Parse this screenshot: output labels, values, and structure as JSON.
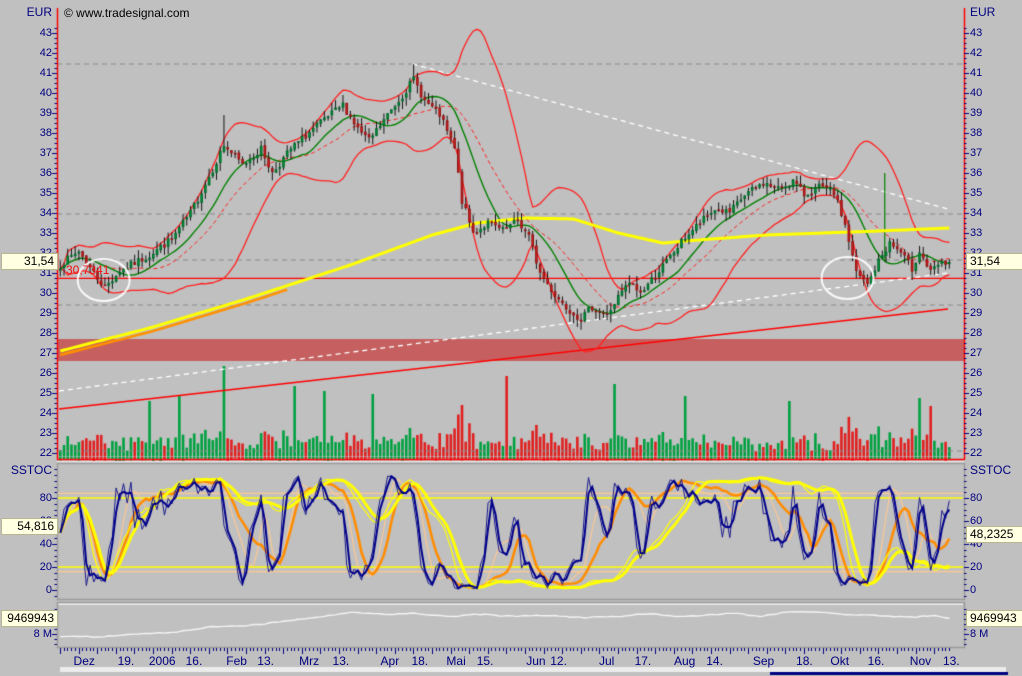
{
  "meta": {
    "copyright": "© www.tradesignal.com"
  },
  "seed": 7,
  "colors": {
    "background": "#c0c0c0",
    "axis_text": "#000080",
    "axis_spine": "#ff0000",
    "up_candle": "#00a040",
    "down_candle": "#e02020",
    "candle_wick": "#151515",
    "bollinger": "#ff2020",
    "ma_green": "#008000",
    "ma_yellow": "#ffff00",
    "ma_orange_under": "#ff9000",
    "trendline_white": "#ffffff",
    "support_red": "#ff0000",
    "band_red": "#c66060",
    "grid_dashed": "#8a8a8a",
    "highlight_bg": "#ffffe1",
    "sstoc_fast_navy": "#00008b",
    "sstoc_signal_orange": "#ff8c00",
    "sstoc_peach": "#ffc890",
    "sstoc_trend_yellow": "#ffff00",
    "volume_line_white": "#f4f4f4",
    "scroll_indicator_navy": "#000080",
    "tick_navy": "#000080"
  },
  "chart_data": [
    {
      "panel": "price",
      "type": "candlestick",
      "currency": "EUR",
      "ylim": [
        22,
        43.5
      ],
      "yticks": [
        22,
        23,
        24,
        25,
        26,
        27,
        28,
        29,
        30,
        31,
        32,
        33,
        34,
        35,
        36,
        37,
        38,
        39,
        40,
        41,
        42,
        43
      ],
      "grid": "dashed-levels",
      "legend_position": "none",
      "candles_count": 240,
      "last_price": 31.54,
      "last_price_label": "31,54",
      "close_anchors": [
        [
          0,
          31.4
        ],
        [
          5,
          32.1
        ],
        [
          9,
          31.0
        ],
        [
          12,
          30.3
        ],
        [
          16,
          31.1
        ],
        [
          24,
          31.9
        ],
        [
          30,
          32.7
        ],
        [
          35,
          34.0
        ],
        [
          41,
          36.2
        ],
        [
          44,
          37.4
        ],
        [
          49,
          36.4
        ],
        [
          54,
          37.2
        ],
        [
          57,
          36.0
        ],
        [
          62,
          37.2
        ],
        [
          68,
          38.2
        ],
        [
          72,
          38.8
        ],
        [
          76,
          39.4
        ],
        [
          80,
          38.2
        ],
        [
          83,
          37.6
        ],
        [
          88,
          38.9
        ],
        [
          92,
          39.9
        ],
        [
          95,
          40.7
        ],
        [
          98,
          39.6
        ],
        [
          102,
          38.9
        ],
        [
          106,
          37.2
        ],
        [
          108,
          34.6
        ],
        [
          111,
          33.0
        ],
        [
          115,
          33.5
        ],
        [
          119,
          33.1
        ],
        [
          123,
          33.6
        ],
        [
          126,
          32.8
        ],
        [
          129,
          31.0
        ],
        [
          133,
          29.9
        ],
        [
          136,
          29.3
        ],
        [
          140,
          28.7
        ],
        [
          143,
          29.3
        ],
        [
          147,
          28.9
        ],
        [
          150,
          29.8
        ],
        [
          153,
          30.5
        ],
        [
          156,
          30.0
        ],
        [
          160,
          30.9
        ],
        [
          164,
          31.8
        ],
        [
          168,
          32.8
        ],
        [
          172,
          33.5
        ],
        [
          176,
          34.2
        ],
        [
          180,
          34.0
        ],
        [
          184,
          34.9
        ],
        [
          189,
          35.5
        ],
        [
          193,
          35.2
        ],
        [
          197,
          35.6
        ],
        [
          200,
          34.9
        ],
        [
          204,
          35.3
        ],
        [
          208,
          35.0
        ],
        [
          211,
          33.4
        ],
        [
          214,
          31.0
        ],
        [
          217,
          30.4
        ],
        [
          220,
          31.6
        ],
        [
          223,
          32.5
        ],
        [
          226,
          32.0
        ],
        [
          229,
          31.2
        ],
        [
          231,
          32.1
        ],
        [
          234,
          31.0
        ],
        [
          236,
          31.4
        ],
        [
          239,
          31.54
        ]
      ],
      "extra_wicks": [
        {
          "day": 44,
          "value": 38.9
        },
        {
          "day": 76,
          "value": 39.9
        },
        {
          "day": 95,
          "value": 41.45
        }
      ],
      "gridlines_dashed": [
        41.45,
        33.95,
        31.65,
        29.4,
        22.1
      ],
      "horizontal_support": {
        "value": 30.73,
        "label": "30,7341"
      },
      "resistance_band": {
        "from": 26.6,
        "to": 27.7
      },
      "trendlines": [
        {
          "name": "descending-resistance",
          "style": "dashed",
          "color": "white",
          "d0": 95,
          "v0": 41.45,
          "d1": 239,
          "v1": 34.2
        },
        {
          "name": "ascending-support-white",
          "style": "dashed",
          "color": "white",
          "d0": 0,
          "v0": 25.1,
          "d1": 239,
          "v1": 31.0
        },
        {
          "name": "ascending-support-red",
          "style": "solid",
          "color": "red",
          "d0": 0,
          "v0": 24.2,
          "d1": 239,
          "v1": 29.2
        }
      ],
      "circle_annotations": [
        {
          "day": 12,
          "value": 30.65
        },
        {
          "day": 212,
          "value": 30.75
        }
      ],
      "ma_yellow_anchors": [
        [
          0,
          27.1
        ],
        [
          25,
          28.3
        ],
        [
          50,
          29.7
        ],
        [
          78,
          31.4
        ],
        [
          100,
          32.9
        ],
        [
          112,
          33.5
        ],
        [
          125,
          33.75
        ],
        [
          138,
          33.7
        ],
        [
          150,
          33.0
        ],
        [
          162,
          32.5
        ],
        [
          175,
          32.7
        ],
        [
          190,
          32.9
        ],
        [
          205,
          33.0
        ],
        [
          220,
          33.1
        ],
        [
          239,
          33.25
        ]
      ],
      "ma_green_period": 12,
      "ma_green_artifact_spike": {
        "day": 222,
        "value": 36.0
      },
      "bollinger": {
        "period": 20,
        "stdev": 2.1
      },
      "volume_spikes": [
        {
          "day": 24,
          "h": 55
        },
        {
          "day": 32,
          "h": 60
        },
        {
          "day": 44,
          "h": 90
        },
        {
          "day": 63,
          "h": 70
        },
        {
          "day": 71,
          "h": 65
        },
        {
          "day": 84,
          "h": 62
        },
        {
          "day": 120,
          "h": 80
        },
        {
          "day": 149,
          "h": 72
        },
        {
          "day": 168,
          "h": 60
        },
        {
          "day": 196,
          "h": 55
        },
        {
          "day": 231,
          "h": 58
        },
        {
          "day": 234,
          "h": 50
        }
      ]
    },
    {
      "panel": "oscillator",
      "type": "line",
      "label": "SSTOC",
      "ylim": [
        -9,
        110
      ],
      "yticks": [
        0,
        20,
        40,
        60,
        80
      ],
      "hlines_yellow": [
        80,
        20
      ],
      "hlines_peach": [
        84,
        16
      ],
      "last_value_left": "54,816",
      "last_value_left_num": 54.816,
      "last_value_right": "48,2325",
      "last_value_right_num": 48.2325,
      "series": [
        {
          "name": "stochastic-fast",
          "color": "navy",
          "lookback": 5
        },
        {
          "name": "stochastic-signal",
          "color": "peach",
          "lookback": 8
        },
        {
          "name": "stochastic-slow",
          "color": "orange",
          "lookback": 12
        },
        {
          "name": "stochastic-trend",
          "color": "yellow",
          "lookback": 45
        }
      ]
    },
    {
      "panel": "volume",
      "type": "line",
      "current_label": "9469943",
      "current_value": 9469943,
      "ytick_label": "8 M",
      "ytick_value": 8000000,
      "anchors_millions": [
        [
          0,
          7.8
        ],
        [
          10,
          7.7
        ],
        [
          20,
          8.0
        ],
        [
          30,
          8.15
        ],
        [
          40,
          8.7
        ],
        [
          50,
          8.8
        ],
        [
          60,
          9.3
        ],
        [
          70,
          9.7
        ],
        [
          78,
          10.15
        ],
        [
          88,
          9.9
        ],
        [
          95,
          10.0
        ],
        [
          105,
          9.7
        ],
        [
          112,
          9.95
        ],
        [
          120,
          9.75
        ],
        [
          130,
          9.85
        ],
        [
          140,
          9.6
        ],
        [
          150,
          9.75
        ],
        [
          158,
          10.0
        ],
        [
          166,
          9.7
        ],
        [
          172,
          9.85
        ],
        [
          180,
          10.05
        ],
        [
          188,
          9.75
        ],
        [
          196,
          10.2
        ],
        [
          205,
          10.15
        ],
        [
          212,
          9.9
        ],
        [
          220,
          9.8
        ],
        [
          228,
          9.65
        ],
        [
          234,
          9.8
        ],
        [
          239,
          9.47
        ]
      ]
    }
  ],
  "time_axis": {
    "labels": [
      {
        "text": "Dez",
        "f": 0.03
      },
      {
        "text": "19.",
        "f": 0.076
      },
      {
        "text": "2006",
        "f": 0.116
      },
      {
        "text": "16.",
        "f": 0.151
      },
      {
        "text": "Feb",
        "f": 0.198
      },
      {
        "text": "13.",
        "f": 0.23
      },
      {
        "text": "Mrz",
        "f": 0.278
      },
      {
        "text": "13.",
        "f": 0.313
      },
      {
        "text": "Apr",
        "f": 0.367
      },
      {
        "text": "18.",
        "f": 0.4
      },
      {
        "text": "Mai",
        "f": 0.44
      },
      {
        "text": "15.",
        "f": 0.472
      },
      {
        "text": "Jun",
        "f": 0.528
      },
      {
        "text": "12.",
        "f": 0.553
      },
      {
        "text": "Jul",
        "f": 0.606
      },
      {
        "text": "17.",
        "f": 0.646
      },
      {
        "text": "Aug",
        "f": 0.692
      },
      {
        "text": "14.",
        "f": 0.725
      },
      {
        "text": "Sep",
        "f": 0.779
      },
      {
        "text": "18.",
        "f": 0.824
      },
      {
        "text": "Okt",
        "f": 0.863
      },
      {
        "text": "16.",
        "f": 0.903
      },
      {
        "text": "Nov",
        "f": 0.952
      },
      {
        "text": "13.",
        "f": 0.986
      }
    ]
  }
}
